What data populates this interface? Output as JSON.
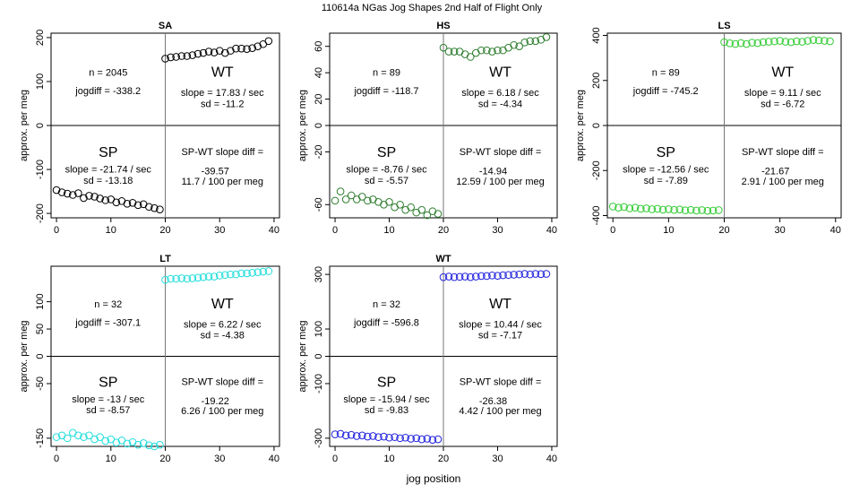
{
  "figure": {
    "title": "110614a   NGas Jog Shapes 2nd Half of Flight Only",
    "xlabel": "jog position"
  },
  "chart_data": [
    {
      "type": "scatter",
      "title": "SA",
      "ylabel": "approx. per meg",
      "xlim": [
        -1,
        41
      ],
      "ylim": [
        -210,
        210
      ],
      "xticks": [
        0,
        10,
        20,
        30,
        40
      ],
      "yticks": [
        -200,
        -100,
        0,
        100,
        200
      ],
      "color": "#000000",
      "sp_x": [
        0,
        1,
        2,
        3,
        4,
        5,
        6,
        7,
        8,
        9,
        10,
        11,
        12,
        13,
        14,
        15,
        16,
        17,
        18,
        19
      ],
      "sp_y": [
        -147,
        -152,
        -155,
        -158,
        -154,
        -165,
        -160,
        -162,
        -166,
        -170,
        -168,
        -175,
        -172,
        -178,
        -176,
        -181,
        -179,
        -185,
        -188,
        -191
      ],
      "wt_x": [
        20,
        21,
        22,
        23,
        24,
        25,
        26,
        27,
        28,
        29,
        30,
        31,
        32,
        33,
        34,
        35,
        36,
        37,
        38,
        39
      ],
      "wt_y": [
        152,
        155,
        156,
        158,
        158,
        160,
        163,
        165,
        168,
        166,
        170,
        165,
        170,
        175,
        175,
        174,
        176,
        180,
        185,
        192
      ],
      "stats": {
        "n": "n = 2045",
        "jogdiff": "jogdiff = -338.2",
        "wt_label": "WT",
        "wt_slope": "slope = 17.83 / sec",
        "wt_sd": "sd = -11.2",
        "sp_label": "SP",
        "sp_slope": "slope = -21.74 / sec",
        "sp_sd": "sd = -13.18",
        "diff_label": "SP-WT slope diff =",
        "diff_value": "-39.57",
        "diff_per": "11.7 / 100 per meg"
      }
    },
    {
      "type": "scatter",
      "title": "HS",
      "ylabel": "approx. per meg",
      "xlim": [
        -1,
        41
      ],
      "ylim": [
        -70,
        70
      ],
      "xticks": [
        0,
        10,
        20,
        30,
        40
      ],
      "yticks": [
        -60,
        -20,
        0,
        20,
        40,
        60
      ],
      "color": "#2e7d2e",
      "sp_x": [
        0,
        1,
        2,
        3,
        4,
        5,
        6,
        7,
        8,
        9,
        10,
        11,
        12,
        13,
        14,
        15,
        16,
        17,
        18,
        19
      ],
      "sp_y": [
        -57,
        -50,
        -56,
        -53,
        -56,
        -54,
        -57,
        -56,
        -58,
        -60,
        -58,
        -62,
        -60,
        -64,
        -62,
        -66,
        -64,
        -68,
        -65,
        -67
      ],
      "wt_x": [
        20,
        21,
        22,
        23,
        24,
        25,
        26,
        27,
        28,
        29,
        30,
        31,
        32,
        33,
        34,
        35,
        36,
        37,
        38,
        39
      ],
      "wt_y": [
        59,
        56,
        56,
        56,
        54,
        52,
        55,
        57,
        57,
        56,
        57,
        57,
        59,
        61,
        60,
        63,
        64,
        64,
        65,
        67
      ],
      "stats": {
        "n": "n = 89",
        "jogdiff": "jogdiff = -118.7",
        "wt_label": "WT",
        "wt_slope": "slope = 6.18 / sec",
        "wt_sd": "sd = -4.34",
        "sp_label": "SP",
        "sp_slope": "slope = -8.76 / sec",
        "sp_sd": "sd = -5.57",
        "diff_label": "SP-WT slope diff =",
        "diff_value": "-14.94",
        "diff_per": "12.59 / 100 per meg"
      }
    },
    {
      "type": "scatter",
      "title": "LS",
      "ylabel": "approx. per meg",
      "xlim": [
        -1,
        41
      ],
      "ylim": [
        -410,
        410
      ],
      "xticks": [
        0,
        10,
        20,
        30,
        40
      ],
      "yticks": [
        -400,
        -200,
        0,
        200,
        400
      ],
      "color": "#33cc33",
      "sp_x": [
        0,
        1,
        2,
        3,
        4,
        5,
        6,
        7,
        8,
        9,
        10,
        11,
        12,
        13,
        14,
        15,
        16,
        17,
        18,
        19
      ],
      "sp_y": [
        -360,
        -365,
        -362,
        -368,
        -365,
        -370,
        -368,
        -372,
        -370,
        -374,
        -372,
        -375,
        -373,
        -377,
        -375,
        -378,
        -376,
        -379,
        -378,
        -376
      ],
      "wt_x": [
        20,
        21,
        22,
        23,
        24,
        25,
        26,
        27,
        28,
        29,
        30,
        31,
        32,
        33,
        34,
        35,
        36,
        37,
        38,
        39
      ],
      "wt_y": [
        370,
        365,
        362,
        366,
        362,
        368,
        366,
        370,
        372,
        374,
        376,
        372,
        370,
        374,
        372,
        376,
        380,
        378,
        376,
        374
      ],
      "stats": {
        "n": "n = 89",
        "jogdiff": "jogdiff = -745.2",
        "wt_label": "WT",
        "wt_slope": "slope = 9.11 / sec",
        "wt_sd": "sd = -6.72",
        "sp_label": "SP",
        "sp_slope": "slope = -12.56 / sec",
        "sp_sd": "sd = -7.89",
        "diff_label": "SP-WT slope diff =",
        "diff_value": "-21.67",
        "diff_per": "2.91 / 100 per meg"
      }
    },
    {
      "type": "scatter",
      "title": "LT",
      "ylabel": "approx. per meg",
      "xlim": [
        -1,
        41
      ],
      "ylim": [
        -165,
        165
      ],
      "xticks": [
        0,
        10,
        20,
        30,
        40
      ],
      "yticks": [
        -150,
        -50,
        0,
        50,
        100
      ],
      "color": "#22dddd",
      "sp_x": [
        0,
        1,
        2,
        3,
        4,
        5,
        6,
        7,
        8,
        9,
        10,
        11,
        12,
        13,
        14,
        15,
        16,
        17,
        18,
        19
      ],
      "sp_y": [
        -148,
        -145,
        -150,
        -140,
        -145,
        -148,
        -145,
        -152,
        -148,
        -155,
        -152,
        -158,
        -154,
        -160,
        -157,
        -162,
        -159,
        -163,
        -165,
        -162
      ],
      "wt_x": [
        20,
        21,
        22,
        23,
        24,
        25,
        26,
        27,
        28,
        29,
        30,
        31,
        32,
        33,
        34,
        35,
        36,
        37,
        38,
        39
      ],
      "wt_y": [
        140,
        142,
        142,
        143,
        142,
        143,
        144,
        145,
        146,
        146,
        148,
        149,
        150,
        150,
        152,
        152,
        153,
        154,
        155,
        156
      ],
      "stats": {
        "n": "n = 32",
        "jogdiff": "jogdiff = -307.1",
        "wt_label": "WT",
        "wt_slope": "slope = 6.22 / sec",
        "wt_sd": "sd = -4.38",
        "sp_label": "SP",
        "sp_slope": "slope = -13 / sec",
        "sp_sd": "sd = -8.57",
        "diff_label": "SP-WT slope diff =",
        "diff_value": "-19.22",
        "diff_per": "6.26 / 100 per meg"
      }
    },
    {
      "type": "scatter",
      "title": "WT",
      "ylabel": "approx. per meg",
      "xlim": [
        -1,
        41
      ],
      "ylim": [
        -330,
        330
      ],
      "xticks": [
        0,
        10,
        20,
        30,
        40
      ],
      "yticks": [
        -300,
        -100,
        0,
        100,
        300
      ],
      "color": "#2222dd",
      "sp_x": [
        0,
        1,
        2,
        3,
        4,
        5,
        6,
        7,
        8,
        9,
        10,
        11,
        12,
        13,
        14,
        15,
        16,
        17,
        18,
        19
      ],
      "sp_y": [
        -286,
        -284,
        -290,
        -288,
        -292,
        -290,
        -294,
        -292,
        -296,
        -294,
        -298,
        -296,
        -300,
        -298,
        -302,
        -300,
        -304,
        -302,
        -306,
        -304
      ],
      "wt_x": [
        20,
        21,
        22,
        23,
        24,
        25,
        26,
        27,
        28,
        29,
        30,
        31,
        32,
        33,
        34,
        35,
        36,
        37,
        38,
        39
      ],
      "wt_y": [
        290,
        292,
        290,
        291,
        292,
        290,
        292,
        294,
        294,
        296,
        295,
        297,
        298,
        299,
        300,
        302,
        300,
        302,
        301,
        302
      ],
      "stats": {
        "n": "n = 32",
        "jogdiff": "jogdiff = -596.8",
        "wt_label": "WT",
        "wt_slope": "slope = 10.44 / sec",
        "wt_sd": "sd = -7.17",
        "sp_label": "SP",
        "sp_slope": "slope = -15.94 / sec",
        "sp_sd": "sd = -9.83",
        "diff_label": "SP-WT slope diff =",
        "diff_value": "-26.38",
        "diff_per": "4.42 / 100 per meg"
      }
    }
  ]
}
